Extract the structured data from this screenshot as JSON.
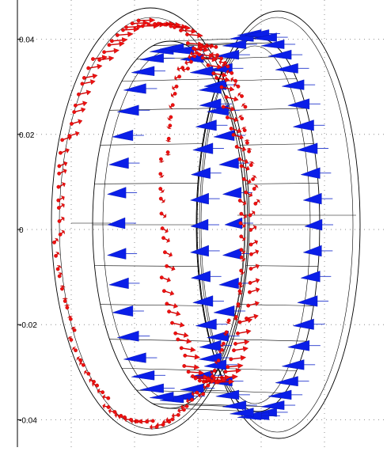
{
  "axes": {
    "y_ticks": [
      {
        "label": "0.04",
        "value": 0.04
      },
      {
        "label": "0.02",
        "value": 0.02
      },
      {
        "label": "0",
        "value": 0
      },
      {
        "label": "-0.02",
        "value": -0.02
      },
      {
        "label": "-0.04",
        "value": -0.04
      }
    ],
    "y_range": [
      -0.0465,
      0.0493
    ],
    "grid": true
  },
  "colors": {
    "blue_arrows": "#0a1ee8",
    "red_arrows": "#f01010",
    "wireframe": "#000000",
    "grid": "#8c8c8c",
    "background": "#ffffff"
  }
}
